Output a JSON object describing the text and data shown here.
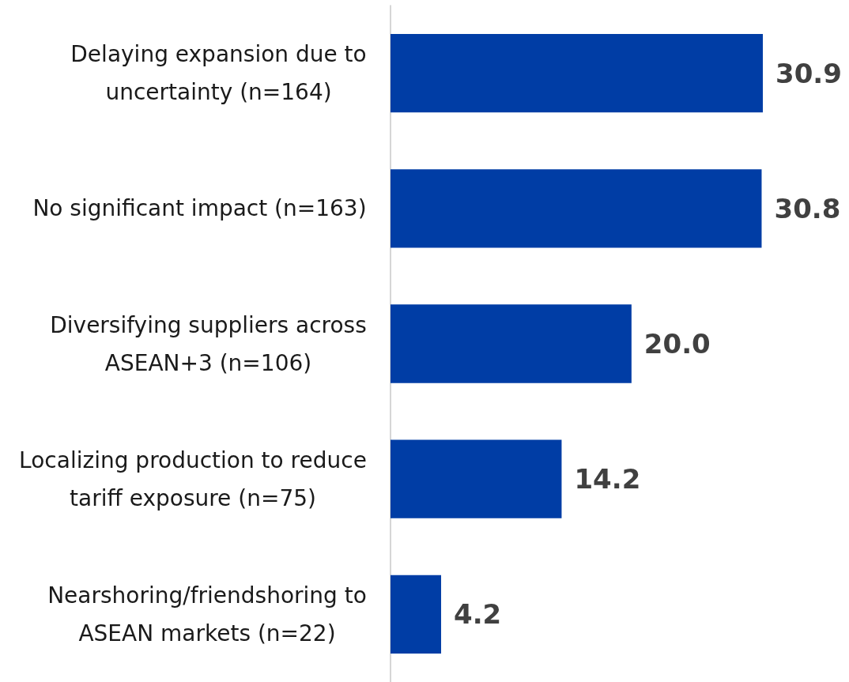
{
  "chart_data": {
    "type": "bar",
    "orientation": "horizontal",
    "categories": [
      "Delaying expansion due to uncertainty (n=164)",
      "No significant impact (n=163)",
      "Diversifying suppliers across ASEAN+3 (n=106)",
      "Localizing production to reduce tariff exposure (n=75)",
      "Nearshoring/friendshoring to ASEAN markets (n=22)"
    ],
    "values": [
      30.9,
      30.8,
      20.0,
      14.2,
      4.2
    ],
    "color": "#003da5",
    "value_labels": [
      "30.9",
      "30.8",
      "20.0",
      "14.2",
      "4.2"
    ],
    "tick_labels": "y"
  }
}
